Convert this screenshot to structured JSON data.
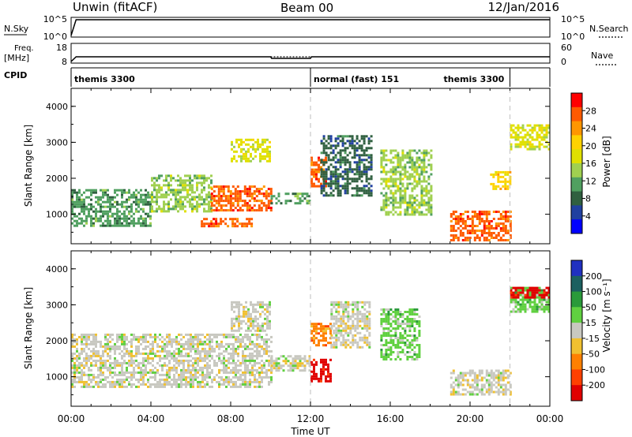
{
  "header": {
    "station": "Unwin (fitACF)",
    "beam": "Beam 00",
    "date": "12/Jan/2016"
  },
  "panels": {
    "nsky": {
      "label": "N.Sky",
      "ticks_left": [
        "10^5",
        "10^0"
      ],
      "ticks_right": [
        "10^5",
        "10^0"
      ],
      "right_label": "N.Search"
    },
    "freq": {
      "label_line1": "Freq.",
      "label_line2": "[MHz]",
      "ticks_left": [
        "18",
        "8"
      ],
      "ticks_right": [
        "60",
        "0"
      ],
      "right_label": "Nave"
    },
    "cpid": {
      "label": "CPID",
      "segments": [
        "themis 3300",
        "normal (fast) 151",
        "themis 3300"
      ]
    }
  },
  "power_panel": {
    "ylabel": "Slant Range [km]",
    "yticks": [
      "4000",
      "3000",
      "2000",
      "1000"
    ],
    "colorbar_label": "Power [dB]",
    "colorbar_ticks": [
      "28",
      "24",
      "20",
      "16",
      "12",
      "8",
      "4"
    ],
    "colors": [
      "#ff0000",
      "#ff5a00",
      "#ff9600",
      "#ffd200",
      "#e0e000",
      "#a0d050",
      "#50a060",
      "#306040",
      "#2040a0",
      "#0000ff"
    ]
  },
  "velocity_panel": {
    "ylabel": "Slant Range [km]",
    "yticks": [
      "4000",
      "3000",
      "2000",
      "1000"
    ],
    "colorbar_label": "Velocity [m s⁻¹]",
    "colorbar_ticks": [
      "200",
      "100",
      "50",
      "15",
      "-15",
      "-50",
      "-100",
      "-200"
    ],
    "colors": [
      "#2030c0",
      "#1c6060",
      "#2a9a3a",
      "#60d040",
      "#c8c8c0",
      "#f0c030",
      "#ff8000",
      "#ff4000",
      "#e00000"
    ]
  },
  "xaxis": {
    "label": "Time UT",
    "ticks": [
      "00:00",
      "04:00",
      "08:00",
      "12:00",
      "16:00",
      "20:00",
      "00:00"
    ]
  },
  "chart_data": [
    {
      "type": "line",
      "title": "N.Sky",
      "x_unit": "hours UT",
      "yscale": "log",
      "series": [
        {
          "name": "N.Sky",
          "x": [
            0,
            0.25,
            0.5,
            4,
            8,
            10,
            12,
            16,
            20,
            22,
            24
          ],
          "y": [
            1,
            100000,
            100000,
            100000,
            100000,
            100000,
            100000,
            100000,
            100000,
            100000,
            100000
          ]
        }
      ]
    },
    {
      "type": "line",
      "title": "Freq.",
      "x_unit": "hours UT",
      "ylim": [
        8,
        18
      ],
      "series": [
        {
          "name": "Freq.",
          "x": [
            0,
            0.25,
            10,
            10.05,
            12,
            12.05,
            24
          ],
          "y": [
            8,
            11,
            11,
            10,
            10,
            11,
            11
          ]
        },
        {
          "name": "Nave",
          "x": [
            10,
            12
          ],
          "y": [
            11,
            11
          ]
        }
      ]
    },
    {
      "type": "table",
      "title": "CPID",
      "x_unit": "hours UT",
      "segments": [
        {
          "name": "themis 3300",
          "start": 0,
          "end": 12
        },
        {
          "name": "normal (fast) 151",
          "start": 12,
          "end": 22
        },
        {
          "name": "themis 3300",
          "start": 22,
          "end": 24
        }
      ]
    },
    {
      "type": "heatmap",
      "title": "Power [dB]",
      "xlabel": "Time UT",
      "ylabel": "Slant Range [km]",
      "xlim": [
        0,
        24
      ],
      "ylim": [
        180,
        4500
      ],
      "clim": [
        0,
        30
      ],
      "regions": [
        {
          "t0": 0.0,
          "t1": 4.0,
          "r0": 700,
          "r1": 1700,
          "value": 10
        },
        {
          "t0": 4.0,
          "t1": 7.0,
          "r0": 1100,
          "r1": 2100,
          "value": 14
        },
        {
          "t0": 7.0,
          "t1": 10.0,
          "r0": 1100,
          "r1": 1800,
          "value": 28
        },
        {
          "t0": 6.5,
          "t1": 9.0,
          "r0": 650,
          "r1": 900,
          "value": 26
        },
        {
          "t0": 8.0,
          "t1": 10.0,
          "r0": 2500,
          "r1": 3100,
          "value": 18
        },
        {
          "t0": 10.0,
          "t1": 12.0,
          "r0": 1300,
          "r1": 1600,
          "value": 10
        },
        {
          "t0": 12.0,
          "t1": 12.8,
          "r0": 1800,
          "r1": 2600,
          "value": 26
        },
        {
          "t0": 12.5,
          "t1": 15.0,
          "r0": 1500,
          "r1": 3200,
          "value": 8
        },
        {
          "t0": 15.5,
          "t1": 18.0,
          "r0": 1000,
          "r1": 2800,
          "value": 14
        },
        {
          "t0": 19.0,
          "t1": 22.0,
          "r0": 300,
          "r1": 1100,
          "value": 26
        },
        {
          "t0": 21.0,
          "t1": 22.0,
          "r0": 1700,
          "r1": 2200,
          "value": 20
        },
        {
          "t0": 22.0,
          "t1": 24.0,
          "r0": 2800,
          "r1": 3500,
          "value": 16
        }
      ]
    },
    {
      "type": "heatmap",
      "title": "Velocity [m s⁻¹]",
      "xlabel": "Time UT",
      "ylabel": "Slant Range [km]",
      "xlim": [
        0,
        24
      ],
      "ylim": [
        180,
        4500
      ],
      "clim": [
        -200,
        200
      ],
      "regions": [
        {
          "t0": 0.0,
          "t1": 10.0,
          "r0": 700,
          "r1": 2200,
          "value": 0
        },
        {
          "t0": 8.0,
          "t1": 10.0,
          "r0": 2300,
          "r1": 3100,
          "value": 0
        },
        {
          "t0": 10.0,
          "t1": 12.0,
          "r0": 1200,
          "r1": 1600,
          "value": 0
        },
        {
          "t0": 12.0,
          "t1": 13.0,
          "r0": 900,
          "r1": 1500,
          "value": -200
        },
        {
          "t0": 12.0,
          "t1": 13.0,
          "r0": 1900,
          "r1": 2500,
          "value": -100
        },
        {
          "t0": 13.0,
          "t1": 15.0,
          "r0": 1800,
          "r1": 3100,
          "value": 0
        },
        {
          "t0": 15.5,
          "t1": 17.5,
          "r0": 1500,
          "r1": 2900,
          "value": 50
        },
        {
          "t0": 19.0,
          "t1": 22.0,
          "r0": 500,
          "r1": 1200,
          "value": 0
        },
        {
          "t0": 22.0,
          "t1": 24.0,
          "r0": 2800,
          "r1": 3500,
          "value": 50
        },
        {
          "t0": 22.0,
          "t1": 24.0,
          "r0": 3200,
          "r1": 3500,
          "value": -200
        }
      ]
    }
  ]
}
